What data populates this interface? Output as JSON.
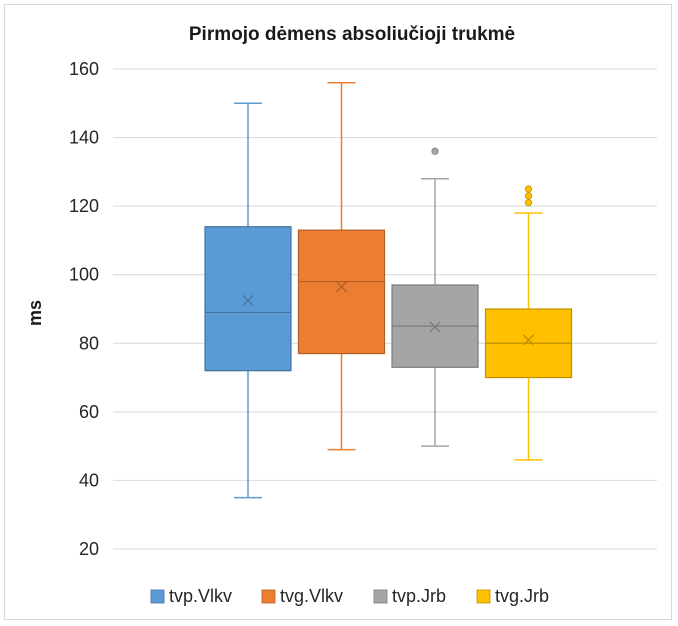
{
  "chart_data": {
    "type": "box",
    "title": "Pirmojo dėmens absoliučioji trukmė",
    "xlabel": "",
    "ylabel": "ms",
    "ylim": [
      20,
      160
    ],
    "yticks": [
      20,
      40,
      60,
      80,
      100,
      120,
      140,
      160
    ],
    "grid": true,
    "legend_position": "bottom",
    "series": [
      {
        "name": "tvp.Vlkv",
        "color": "#5b9bd5",
        "min": 35,
        "q1": 72,
        "median": 89,
        "q3": 114,
        "max": 150,
        "mean": 92.5,
        "outliers": []
      },
      {
        "name": "tvg.Vlkv",
        "color": "#ed7d31",
        "min": 49,
        "q1": 77,
        "median": 98,
        "q3": 113,
        "max": 156,
        "mean": 96.5,
        "outliers": []
      },
      {
        "name": "tvp.Jrb",
        "color": "#a5a5a5",
        "min": 50,
        "q1": 73,
        "median": 85,
        "q3": 97,
        "max": 128,
        "mean": 84.8,
        "outliers": [
          136
        ]
      },
      {
        "name": "tvg.Jrb",
        "color": "#ffc000",
        "min": 46,
        "q1": 70,
        "median": 80,
        "q3": 90,
        "max": 118,
        "mean": 81,
        "outliers": [
          121,
          123,
          125
        ]
      }
    ]
  }
}
